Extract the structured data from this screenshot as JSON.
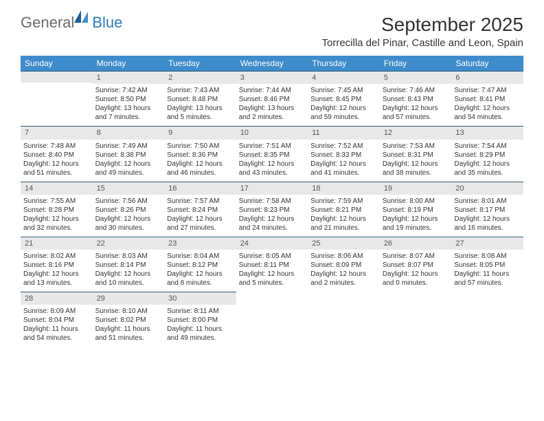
{
  "logo": {
    "general": "General",
    "blue": "Blue"
  },
  "title": "September 2025",
  "location": "Torrecilla del Pinar, Castille and Leon, Spain",
  "dayNames": [
    "Sunday",
    "Monday",
    "Tuesday",
    "Wednesday",
    "Thursday",
    "Friday",
    "Saturday"
  ],
  "colors": {
    "headerBg": "#3e8ccb",
    "headerText": "#ffffff",
    "dayNumBg": "#e8e8e8",
    "border": "#2b5a7a",
    "logoGrey": "#6b6b6b",
    "logoBlue": "#2b7bbf"
  },
  "typography": {
    "titleSize": 28,
    "locationSize": 15,
    "headerSize": 12,
    "bodySize": 10
  },
  "weeks": [
    [
      null,
      {
        "n": "1",
        "sr": "Sunrise: 7:42 AM",
        "ss": "Sunset: 8:50 PM",
        "dl": "Daylight: 13 hours and 7 minutes."
      },
      {
        "n": "2",
        "sr": "Sunrise: 7:43 AM",
        "ss": "Sunset: 8:48 PM",
        "dl": "Daylight: 13 hours and 5 minutes."
      },
      {
        "n": "3",
        "sr": "Sunrise: 7:44 AM",
        "ss": "Sunset: 8:46 PM",
        "dl": "Daylight: 13 hours and 2 minutes."
      },
      {
        "n": "4",
        "sr": "Sunrise: 7:45 AM",
        "ss": "Sunset: 8:45 PM",
        "dl": "Daylight: 12 hours and 59 minutes."
      },
      {
        "n": "5",
        "sr": "Sunrise: 7:46 AM",
        "ss": "Sunset: 8:43 PM",
        "dl": "Daylight: 12 hours and 57 minutes."
      },
      {
        "n": "6",
        "sr": "Sunrise: 7:47 AM",
        "ss": "Sunset: 8:41 PM",
        "dl": "Daylight: 12 hours and 54 minutes."
      }
    ],
    [
      {
        "n": "7",
        "sr": "Sunrise: 7:48 AM",
        "ss": "Sunset: 8:40 PM",
        "dl": "Daylight: 12 hours and 51 minutes."
      },
      {
        "n": "8",
        "sr": "Sunrise: 7:49 AM",
        "ss": "Sunset: 8:38 PM",
        "dl": "Daylight: 12 hours and 49 minutes."
      },
      {
        "n": "9",
        "sr": "Sunrise: 7:50 AM",
        "ss": "Sunset: 8:36 PM",
        "dl": "Daylight: 12 hours and 46 minutes."
      },
      {
        "n": "10",
        "sr": "Sunrise: 7:51 AM",
        "ss": "Sunset: 8:35 PM",
        "dl": "Daylight: 12 hours and 43 minutes."
      },
      {
        "n": "11",
        "sr": "Sunrise: 7:52 AM",
        "ss": "Sunset: 8:33 PM",
        "dl": "Daylight: 12 hours and 41 minutes."
      },
      {
        "n": "12",
        "sr": "Sunrise: 7:53 AM",
        "ss": "Sunset: 8:31 PM",
        "dl": "Daylight: 12 hours and 38 minutes."
      },
      {
        "n": "13",
        "sr": "Sunrise: 7:54 AM",
        "ss": "Sunset: 8:29 PM",
        "dl": "Daylight: 12 hours and 35 minutes."
      }
    ],
    [
      {
        "n": "14",
        "sr": "Sunrise: 7:55 AM",
        "ss": "Sunset: 8:28 PM",
        "dl": "Daylight: 12 hours and 32 minutes."
      },
      {
        "n": "15",
        "sr": "Sunrise: 7:56 AM",
        "ss": "Sunset: 8:26 PM",
        "dl": "Daylight: 12 hours and 30 minutes."
      },
      {
        "n": "16",
        "sr": "Sunrise: 7:57 AM",
        "ss": "Sunset: 8:24 PM",
        "dl": "Daylight: 12 hours and 27 minutes."
      },
      {
        "n": "17",
        "sr": "Sunrise: 7:58 AM",
        "ss": "Sunset: 8:23 PM",
        "dl": "Daylight: 12 hours and 24 minutes."
      },
      {
        "n": "18",
        "sr": "Sunrise: 7:59 AM",
        "ss": "Sunset: 8:21 PM",
        "dl": "Daylight: 12 hours and 21 minutes."
      },
      {
        "n": "19",
        "sr": "Sunrise: 8:00 AM",
        "ss": "Sunset: 8:19 PM",
        "dl": "Daylight: 12 hours and 19 minutes."
      },
      {
        "n": "20",
        "sr": "Sunrise: 8:01 AM",
        "ss": "Sunset: 8:17 PM",
        "dl": "Daylight: 12 hours and 16 minutes."
      }
    ],
    [
      {
        "n": "21",
        "sr": "Sunrise: 8:02 AM",
        "ss": "Sunset: 8:16 PM",
        "dl": "Daylight: 12 hours and 13 minutes."
      },
      {
        "n": "22",
        "sr": "Sunrise: 8:03 AM",
        "ss": "Sunset: 8:14 PM",
        "dl": "Daylight: 12 hours and 10 minutes."
      },
      {
        "n": "23",
        "sr": "Sunrise: 8:04 AM",
        "ss": "Sunset: 8:12 PM",
        "dl": "Daylight: 12 hours and 8 minutes."
      },
      {
        "n": "24",
        "sr": "Sunrise: 8:05 AM",
        "ss": "Sunset: 8:11 PM",
        "dl": "Daylight: 12 hours and 5 minutes."
      },
      {
        "n": "25",
        "sr": "Sunrise: 8:06 AM",
        "ss": "Sunset: 8:09 PM",
        "dl": "Daylight: 12 hours and 2 minutes."
      },
      {
        "n": "26",
        "sr": "Sunrise: 8:07 AM",
        "ss": "Sunset: 8:07 PM",
        "dl": "Daylight: 12 hours and 0 minutes."
      },
      {
        "n": "27",
        "sr": "Sunrise: 8:08 AM",
        "ss": "Sunset: 8:05 PM",
        "dl": "Daylight: 11 hours and 57 minutes."
      }
    ],
    [
      {
        "n": "28",
        "sr": "Sunrise: 8:09 AM",
        "ss": "Sunset: 8:04 PM",
        "dl": "Daylight: 11 hours and 54 minutes."
      },
      {
        "n": "29",
        "sr": "Sunrise: 8:10 AM",
        "ss": "Sunset: 8:02 PM",
        "dl": "Daylight: 11 hours and 51 minutes."
      },
      {
        "n": "30",
        "sr": "Sunrise: 8:11 AM",
        "ss": "Sunset: 8:00 PM",
        "dl": "Daylight: 11 hours and 49 minutes."
      },
      null,
      null,
      null,
      null
    ]
  ]
}
